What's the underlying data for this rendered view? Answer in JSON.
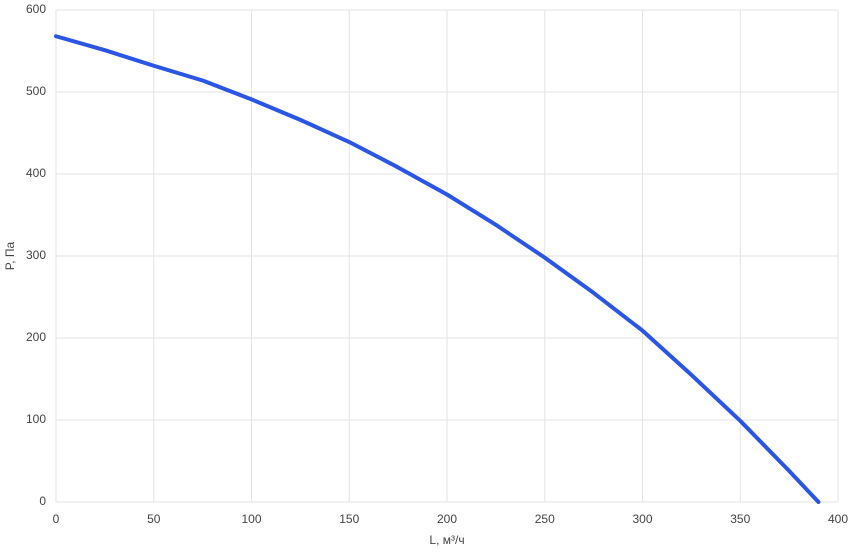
{
  "chart_data": {
    "type": "line",
    "x_label": "L, м³/ч",
    "y_label": "P, Па",
    "x": [
      0,
      25,
      50,
      75,
      100,
      125,
      150,
      175,
      200,
      225,
      250,
      275,
      300,
      325,
      350,
      375,
      390
    ],
    "series": [
      {
        "color": "#2a55e5",
        "values": [
          568,
          551,
          532,
          514,
          491,
          466,
          439,
          408,
          375,
          338,
          298,
          255,
          209,
          155,
          99,
          38,
          0
        ]
      }
    ],
    "xlim": [
      0,
      400
    ],
    "xticks": [
      0,
      50,
      100,
      150,
      200,
      250,
      300,
      350,
      400
    ],
    "ylim": [
      0,
      600
    ],
    "yticks": [
      0,
      100,
      200,
      300,
      400,
      500,
      600
    ],
    "grid": true
  }
}
